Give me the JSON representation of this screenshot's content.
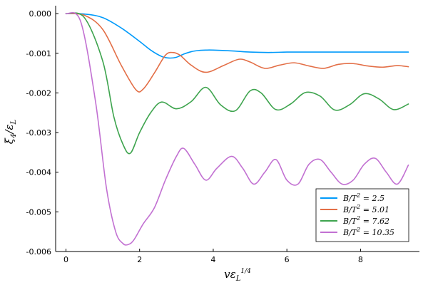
{
  "chart_data": {
    "type": "line",
    "xlabel": "vε_L^{1/4}",
    "ylabel": "ξ_4/ε_L",
    "xlim": [
      -0.28,
      9.6
    ],
    "ylim": [
      -0.006,
      0.0002
    ],
    "xticks": [
      0,
      2,
      4,
      6,
      8
    ],
    "xtick_labels": [
      "0",
      "2",
      "4",
      "6",
      "8"
    ],
    "yticks": [
      0.0,
      -0.001,
      -0.002,
      -0.003,
      -0.004,
      -0.005,
      -0.006
    ],
    "ytick_labels": [
      "0.000",
      "-0.001",
      "-0.002",
      "-0.003",
      "-0.004",
      "-0.005",
      "-0.006"
    ],
    "grid": false,
    "legend_position": "bottom-right",
    "series": [
      {
        "name": "B/T² = 2.5",
        "label_parts": [
          "B/T",
          "2",
          " = 2.5"
        ],
        "color": "#009AFA",
        "x": [
          0,
          0.5,
          1.0,
          1.5,
          2.0,
          2.3,
          2.6,
          2.8,
          3.0,
          3.2,
          3.4,
          3.6,
          3.8,
          4.0,
          4.5,
          5.0,
          5.5,
          6.0,
          6.5,
          7.0,
          7.5,
          8.0,
          8.5,
          9.0,
          9.3
        ],
        "y": [
          0,
          -1e-05,
          -0.0001,
          -0.00036,
          -0.0007,
          -0.00092,
          -0.00108,
          -0.00112,
          -0.0011,
          -0.00102,
          -0.00096,
          -0.00093,
          -0.00092,
          -0.00092,
          -0.00094,
          -0.00097,
          -0.00098,
          -0.00097,
          -0.00097,
          -0.00097,
          -0.00097,
          -0.00097,
          -0.00097,
          -0.00097,
          -0.00097
        ]
      },
      {
        "name": "B/T² = 5.01",
        "label_parts": [
          "B/T",
          "2",
          " = 5.01"
        ],
        "color": "#E36F47",
        "x": [
          0,
          0.5,
          1.0,
          1.5,
          1.9,
          2.1,
          2.4,
          2.7,
          2.9,
          3.1,
          3.4,
          3.8,
          4.3,
          4.7,
          5.0,
          5.4,
          5.8,
          6.2,
          6.6,
          7.0,
          7.4,
          7.8,
          8.2,
          8.6,
          9.0,
          9.3
        ],
        "y": [
          0,
          -4e-05,
          -0.0004,
          -0.0013,
          -0.00192,
          -0.0019,
          -0.0015,
          -0.00105,
          -0.00098,
          -0.00105,
          -0.0013,
          -0.00148,
          -0.0013,
          -0.00115,
          -0.00122,
          -0.00138,
          -0.0013,
          -0.00124,
          -0.00132,
          -0.00138,
          -0.00128,
          -0.00126,
          -0.00132,
          -0.00135,
          -0.00131,
          -0.00134
        ]
      },
      {
        "name": "B/T² = 7.62",
        "label_parts": [
          "B/T",
          "2",
          " = 7.62"
        ],
        "color": "#3EA44E",
        "x": [
          0,
          0.5,
          1.0,
          1.3,
          1.55,
          1.75,
          2.0,
          2.3,
          2.6,
          3.0,
          3.4,
          3.8,
          4.2,
          4.6,
          5.0,
          5.3,
          5.7,
          6.1,
          6.5,
          6.9,
          7.3,
          7.7,
          8.1,
          8.5,
          8.9,
          9.3
        ],
        "y": [
          0,
          -0.0001,
          -0.0012,
          -0.0026,
          -0.0033,
          -0.00352,
          -0.003,
          -0.0025,
          -0.00223,
          -0.0024,
          -0.00222,
          -0.00186,
          -0.0023,
          -0.00245,
          -0.00195,
          -0.002,
          -0.00242,
          -0.00228,
          -0.00199,
          -0.00208,
          -0.00243,
          -0.0023,
          -0.00202,
          -0.00215,
          -0.00242,
          -0.00228
        ]
      },
      {
        "name": "B/T² = 10.35",
        "label_parts": [
          "B/T",
          "2",
          " = 10.35"
        ],
        "color": "#C271D2",
        "x": [
          0,
          0.4,
          0.8,
          1.1,
          1.35,
          1.55,
          1.7,
          1.85,
          2.1,
          2.4,
          2.7,
          3.0,
          3.2,
          3.5,
          3.8,
          4.1,
          4.5,
          4.8,
          5.1,
          5.4,
          5.7,
          6.0,
          6.3,
          6.6,
          6.9,
          7.2,
          7.5,
          7.8,
          8.1,
          8.4,
          8.7,
          9.0,
          9.3
        ],
        "y": [
          0,
          -0.0002,
          -0.0022,
          -0.0044,
          -0.0055,
          -0.0058,
          -0.00582,
          -0.0057,
          -0.0053,
          -0.0049,
          -0.0042,
          -0.0036,
          -0.0034,
          -0.0038,
          -0.0042,
          -0.0039,
          -0.0036,
          -0.0039,
          -0.0043,
          -0.004,
          -0.00368,
          -0.0042,
          -0.0043,
          -0.0038,
          -0.00368,
          -0.004,
          -0.0043,
          -0.0042,
          -0.0038,
          -0.00365,
          -0.004,
          -0.0043,
          -0.00382
        ]
      }
    ]
  }
}
